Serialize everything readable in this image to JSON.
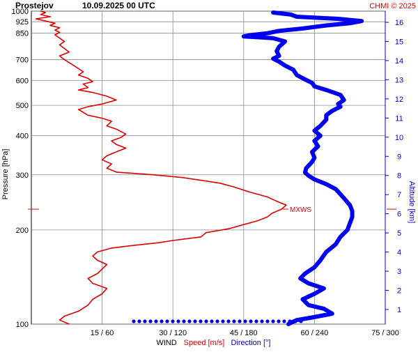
{
  "chart_data": {
    "type": "line",
    "header": {
      "station": "Prostejov",
      "datetime": "10.09.2025 00 UTC",
      "credit": "CHMI © 2025"
    },
    "axes": {
      "pressure": {
        "label": "Pressure [hPa]",
        "scale": "log",
        "range": [
          1000,
          100
        ],
        "ticks": [
          1000,
          925,
          850,
          700,
          600,
          500,
          400,
          300,
          200,
          100
        ]
      },
      "wind": {
        "xlabel_prefix": "WIND",
        "speed_label": "Speed [m/s]",
        "direction_label": "Direction [°]",
        "speed_range": [
          0,
          75
        ],
        "direction_range": [
          0,
          300
        ],
        "ticks": [
          {
            "speed": 15,
            "dir": 60,
            "label": "15 / 60"
          },
          {
            "speed": 30,
            "dir": 120,
            "label": "30 / 120"
          },
          {
            "speed": 45,
            "dir": 180,
            "label": "45 / 180"
          },
          {
            "speed": 60,
            "dir": 240,
            "label": "60 / 240"
          },
          {
            "speed": 75,
            "dir": 300,
            "label": "75 / 300"
          }
        ]
      },
      "altitude": {
        "label": "Altitude [km]",
        "ticks": [
          1,
          2,
          3,
          4,
          5,
          6,
          7,
          8,
          9,
          10,
          11,
          12,
          13,
          14,
          15,
          16
        ]
      }
    },
    "annotation": {
      "label": "MXWS",
      "pressure": 233,
      "speed": 53
    },
    "series": [
      {
        "name": "Speed [m/s]",
        "color": "#dd0000",
        "points": [
          [
            1000,
            2
          ],
          [
            990,
            3
          ],
          [
            975,
            2
          ],
          [
            960,
            4
          ],
          [
            945,
            1
          ],
          [
            930,
            3
          ],
          [
            915,
            5
          ],
          [
            900,
            4
          ],
          [
            885,
            6
          ],
          [
            870,
            5
          ],
          [
            855,
            6
          ],
          [
            840,
            5
          ],
          [
            820,
            6
          ],
          [
            800,
            7
          ],
          [
            780,
            6
          ],
          [
            760,
            7
          ],
          [
            740,
            8
          ],
          [
            720,
            6
          ],
          [
            700,
            7
          ],
          [
            685,
            8
          ],
          [
            670,
            9
          ],
          [
            655,
            10
          ],
          [
            640,
            11
          ],
          [
            625,
            10
          ],
          [
            610,
            12
          ],
          [
            595,
            13
          ],
          [
            585,
            11
          ],
          [
            570,
            12
          ],
          [
            560,
            10
          ],
          [
            550,
            13
          ],
          [
            535,
            16
          ],
          [
            520,
            18
          ],
          [
            505,
            15
          ],
          [
            495,
            12
          ],
          [
            485,
            10
          ],
          [
            475,
            11
          ],
          [
            465,
            12
          ],
          [
            455,
            15
          ],
          [
            445,
            17
          ],
          [
            430,
            16
          ],
          [
            420,
            18
          ],
          [
            405,
            20
          ],
          [
            395,
            19
          ],
          [
            385,
            17
          ],
          [
            375,
            18
          ],
          [
            365,
            20
          ],
          [
            355,
            18
          ],
          [
            345,
            16
          ],
          [
            335,
            15
          ],
          [
            325,
            17
          ],
          [
            315,
            16
          ],
          [
            306,
            18
          ],
          [
            300,
            26
          ],
          [
            294,
            32
          ],
          [
            288,
            36
          ],
          [
            282,
            40
          ],
          [
            274,
            43
          ],
          [
            265,
            46
          ],
          [
            255,
            50
          ],
          [
            247,
            52
          ],
          [
            240,
            54
          ],
          [
            233,
            53
          ],
          [
            226,
            51
          ],
          [
            220,
            50
          ],
          [
            214,
            48
          ],
          [
            208,
            45
          ],
          [
            202,
            42
          ],
          [
            196,
            37
          ],
          [
            190,
            36
          ],
          [
            185,
            30
          ],
          [
            182,
            27
          ],
          [
            178,
            21
          ],
          [
            175,
            17
          ],
          [
            170,
            14
          ],
          [
            165,
            13
          ],
          [
            160,
            14
          ],
          [
            155,
            16
          ],
          [
            150,
            15
          ],
          [
            145,
            14
          ],
          [
            140,
            12
          ],
          [
            135,
            13
          ],
          [
            130,
            16
          ],
          [
            125,
            15
          ],
          [
            120,
            13
          ],
          [
            115,
            12
          ],
          [
            110,
            10
          ],
          [
            106,
            7
          ],
          [
            103,
            6
          ],
          [
            100,
            8
          ]
        ]
      },
      {
        "name": "Direction [°]",
        "color": "#0000ee",
        "points": [
          [
            990,
            205
          ],
          [
            975,
            220
          ],
          [
            960,
            225
          ],
          [
            945,
            260
          ],
          [
            930,
            280
          ],
          [
            915,
            270
          ],
          [
            900,
            250
          ],
          [
            880,
            230
          ],
          [
            865,
            210
          ],
          [
            850,
            200
          ],
          [
            838,
            185
          ],
          [
            830,
            180
          ],
          [
            820,
            205
          ],
          [
            800,
            215
          ],
          [
            770,
            210
          ],
          [
            745,
            208
          ],
          [
            720,
            210
          ],
          [
            705,
            205
          ],
          [
            690,
            210
          ],
          [
            670,
            215
          ],
          [
            650,
            222
          ],
          [
            625,
            225
          ],
          [
            605,
            232
          ],
          [
            590,
            238
          ],
          [
            575,
            240
          ],
          [
            560,
            250
          ],
          [
            540,
            262
          ],
          [
            520,
            265
          ],
          [
            505,
            260
          ],
          [
            495,
            262
          ],
          [
            480,
            255
          ],
          [
            465,
            250
          ],
          [
            450,
            250
          ],
          [
            430,
            245
          ],
          [
            415,
            240
          ],
          [
            400,
            245
          ],
          [
            385,
            240
          ],
          [
            370,
            243
          ],
          [
            355,
            238
          ],
          [
            340,
            240
          ],
          [
            330,
            238
          ],
          [
            315,
            233
          ],
          [
            305,
            232
          ],
          [
            298,
            235
          ],
          [
            290,
            240
          ],
          [
            280,
            250
          ],
          [
            270,
            258
          ],
          [
            260,
            262
          ],
          [
            250,
            266
          ],
          [
            240,
            270
          ],
          [
            230,
            272
          ],
          [
            220,
            272
          ],
          [
            210,
            270
          ],
          [
            200,
            268
          ],
          [
            190,
            262
          ],
          [
            180,
            258
          ],
          [
            170,
            250
          ],
          [
            160,
            245
          ],
          [
            152,
            240
          ],
          [
            145,
            232
          ],
          [
            140,
            228
          ],
          [
            135,
            235
          ],
          [
            130,
            248
          ],
          [
            125,
            240
          ],
          [
            120,
            230
          ],
          [
            115,
            235
          ],
          [
            112,
            248
          ],
          [
            108,
            255
          ],
          [
            105,
            238
          ],
          [
            103,
            225
          ],
          [
            101,
            220
          ],
          [
            100,
            218
          ]
        ]
      }
    ]
  }
}
